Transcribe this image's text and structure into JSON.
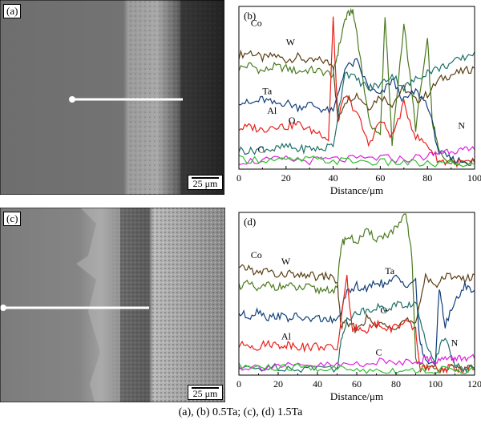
{
  "figure": {
    "caption": "(a), (b) 0.5Ta; (c), (d) 1.5Ta"
  },
  "panels": {
    "a": {
      "tag": "(a)",
      "scale_bar": "25 μm"
    },
    "c": {
      "tag": "(c)",
      "scale_bar": "25 μm"
    }
  },
  "chart_data": [
    {
      "panel": "(b)",
      "type": "line",
      "xlabel": "Distance/μm",
      "ylabel": "",
      "xlim": [
        0,
        100
      ],
      "x_ticks": [
        0,
        20,
        40,
        60,
        80,
        100
      ],
      "grid": false,
      "series": [
        {
          "name": "Co",
          "color": "#5a3e14",
          "x": [
            0,
            5,
            10,
            15,
            20,
            25,
            30,
            35,
            40,
            42,
            45,
            50,
            55,
            60,
            65,
            70,
            75,
            80,
            85,
            90,
            95,
            100
          ],
          "y": [
            0.7,
            0.72,
            0.68,
            0.7,
            0.67,
            0.69,
            0.66,
            0.67,
            0.64,
            0.3,
            0.42,
            0.46,
            0.38,
            0.45,
            0.4,
            0.5,
            0.42,
            0.46,
            0.55,
            0.58,
            0.6,
            0.62
          ]
        },
        {
          "name": "W",
          "color": "#4a7a1e",
          "x": [
            0,
            5,
            10,
            15,
            20,
            25,
            30,
            35,
            40,
            42,
            45,
            48,
            50,
            55,
            60,
            62,
            65,
            70,
            75,
            80,
            82,
            85,
            90,
            95,
            100
          ],
          "y": [
            0.62,
            0.64,
            0.6,
            0.63,
            0.62,
            0.6,
            0.61,
            0.6,
            0.58,
            0.72,
            0.92,
            0.98,
            0.85,
            0.3,
            0.2,
            0.95,
            0.15,
            0.9,
            0.25,
            0.8,
            0.3,
            0.1,
            0.05,
            0.05,
            0.04
          ]
        },
        {
          "name": "Ta",
          "color": "#123f7a",
          "x": [
            0,
            5,
            10,
            15,
            20,
            25,
            30,
            35,
            40,
            45,
            50,
            55,
            60,
            65,
            70,
            75,
            80,
            85,
            90,
            95,
            100
          ],
          "y": [
            0.42,
            0.4,
            0.43,
            0.4,
            0.41,
            0.38,
            0.4,
            0.37,
            0.35,
            0.62,
            0.66,
            0.5,
            0.45,
            0.55,
            0.42,
            0.48,
            0.4,
            0.1,
            0.06,
            0.05,
            0.05
          ]
        },
        {
          "name": "Al",
          "color": "#e8201a",
          "x": [
            0,
            5,
            10,
            15,
            20,
            25,
            30,
            35,
            38,
            40,
            42,
            45,
            50,
            55,
            60,
            65,
            70,
            75,
            80,
            85,
            90,
            95,
            100
          ],
          "y": [
            0.25,
            0.26,
            0.24,
            0.27,
            0.26,
            0.28,
            0.24,
            0.22,
            0.18,
            0.92,
            0.3,
            0.45,
            0.35,
            0.15,
            0.3,
            0.2,
            0.4,
            0.2,
            0.15,
            0.05,
            0.04,
            0.04,
            0.04
          ]
        },
        {
          "name": "O",
          "color": "#1f6f6a",
          "x": [
            0,
            5,
            10,
            15,
            20,
            25,
            30,
            35,
            40,
            45,
            50,
            55,
            60,
            65,
            70,
            75,
            80,
            85,
            90,
            95,
            100
          ],
          "y": [
            0.12,
            0.11,
            0.13,
            0.12,
            0.14,
            0.12,
            0.13,
            0.12,
            0.15,
            0.6,
            0.55,
            0.5,
            0.52,
            0.58,
            0.5,
            0.55,
            0.6,
            0.62,
            0.65,
            0.68,
            0.72
          ]
        },
        {
          "name": "N",
          "color": "#e020e0",
          "x": [
            0,
            10,
            20,
            30,
            40,
            50,
            60,
            70,
            80,
            85,
            90,
            95,
            100
          ],
          "y": [
            0.05,
            0.05,
            0.06,
            0.05,
            0.06,
            0.06,
            0.07,
            0.06,
            0.08,
            0.1,
            0.12,
            0.11,
            0.12
          ]
        },
        {
          "name": "C",
          "color": "#30c030",
          "x": [
            0,
            10,
            20,
            30,
            40,
            50,
            60,
            70,
            80,
            90,
            100
          ],
          "y": [
            0.06,
            0.06,
            0.05,
            0.06,
            0.05,
            0.05,
            0.04,
            0.04,
            0.03,
            0.03,
            0.03
          ]
        }
      ]
    },
    {
      "panel": "(d)",
      "type": "line",
      "xlabel": "Distance/μm",
      "ylabel": "",
      "xlim": [
        0,
        120
      ],
      "x_ticks": [
        0,
        20,
        40,
        60,
        80,
        100,
        120
      ],
      "grid": false,
      "series": [
        {
          "name": "Co",
          "color": "#5a3e14",
          "x": [
            0,
            5,
            10,
            15,
            20,
            25,
            30,
            35,
            40,
            45,
            50,
            52,
            55,
            60,
            65,
            70,
            75,
            80,
            85,
            90,
            95,
            100,
            105,
            110,
            115,
            120
          ],
          "y": [
            0.65,
            0.66,
            0.62,
            0.65,
            0.6,
            0.63,
            0.6,
            0.62,
            0.6,
            0.61,
            0.58,
            0.3,
            0.32,
            0.28,
            0.35,
            0.3,
            0.32,
            0.3,
            0.34,
            0.3,
            0.62,
            0.55,
            0.6,
            0.62,
            0.58,
            0.62
          ]
        },
        {
          "name": "W",
          "color": "#4a7a1e",
          "x": [
            0,
            5,
            10,
            15,
            20,
            25,
            30,
            35,
            40,
            45,
            50,
            52,
            55,
            60,
            65,
            70,
            75,
            80,
            85,
            88,
            90,
            95,
            100,
            105,
            110,
            115,
            120
          ],
          "y": [
            0.55,
            0.56,
            0.52,
            0.56,
            0.54,
            0.55,
            0.53,
            0.54,
            0.52,
            0.53,
            0.52,
            0.8,
            0.85,
            0.82,
            0.88,
            0.84,
            0.86,
            0.9,
            0.98,
            0.75,
            0.1,
            0.05,
            0.03,
            0.05,
            0.04,
            0.04,
            0.04
          ]
        },
        {
          "name": "Ta",
          "color": "#123f7a",
          "x": [
            0,
            5,
            10,
            15,
            20,
            25,
            30,
            35,
            40,
            45,
            50,
            55,
            60,
            65,
            70,
            75,
            80,
            85,
            90,
            92,
            95,
            100,
            102,
            105,
            110,
            115,
            120
          ],
          "y": [
            0.38,
            0.36,
            0.4,
            0.35,
            0.37,
            0.35,
            0.36,
            0.34,
            0.35,
            0.34,
            0.33,
            0.5,
            0.55,
            0.52,
            0.58,
            0.55,
            0.6,
            0.56,
            0.58,
            0.2,
            0.1,
            0.05,
            0.55,
            0.3,
            0.45,
            0.55,
            0.52
          ]
        },
        {
          "name": "Al",
          "color": "#e8201a",
          "x": [
            0,
            5,
            10,
            15,
            20,
            25,
            30,
            35,
            40,
            45,
            50,
            55,
            58,
            60,
            65,
            70,
            75,
            80,
            85,
            90,
            92,
            95,
            100,
            105,
            110,
            115,
            120
          ],
          "y": [
            0.18,
            0.19,
            0.17,
            0.2,
            0.18,
            0.19,
            0.18,
            0.17,
            0.18,
            0.17,
            0.16,
            0.6,
            0.25,
            0.3,
            0.28,
            0.32,
            0.28,
            0.3,
            0.32,
            0.28,
            0.05,
            0.04,
            0.04,
            0.04,
            0.04,
            0.04,
            0.04
          ]
        },
        {
          "name": "O",
          "color": "#1f6f6a",
          "x": [
            0,
            10,
            20,
            30,
            40,
            50,
            52,
            55,
            60,
            65,
            70,
            75,
            80,
            85,
            90,
            95,
            100,
            105,
            110,
            115,
            120
          ],
          "y": [
            0.04,
            0.04,
            0.05,
            0.04,
            0.05,
            0.04,
            0.2,
            0.35,
            0.38,
            0.4,
            0.42,
            0.4,
            0.44,
            0.42,
            0.45,
            0.2,
            0.1,
            0.25,
            0.05,
            0.04,
            0.04
          ]
        },
        {
          "name": "N",
          "color": "#e020e0",
          "x": [
            0,
            10,
            20,
            30,
            40,
            50,
            60,
            70,
            80,
            90,
            95,
            100,
            105,
            110,
            115,
            120
          ],
          "y": [
            0.05,
            0.05,
            0.06,
            0.05,
            0.06,
            0.06,
            0.07,
            0.08,
            0.08,
            0.09,
            0.1,
            0.09,
            0.1,
            0.1,
            0.11,
            0.1
          ]
        },
        {
          "name": "C",
          "color": "#30c030",
          "x": [
            0,
            10,
            20,
            30,
            40,
            50,
            60,
            70,
            80,
            90,
            100,
            110,
            120
          ],
          "y": [
            0.05,
            0.05,
            0.04,
            0.05,
            0.04,
            0.04,
            0.03,
            0.03,
            0.03,
            0.03,
            0.03,
            0.03,
            0.03
          ]
        }
      ]
    }
  ]
}
